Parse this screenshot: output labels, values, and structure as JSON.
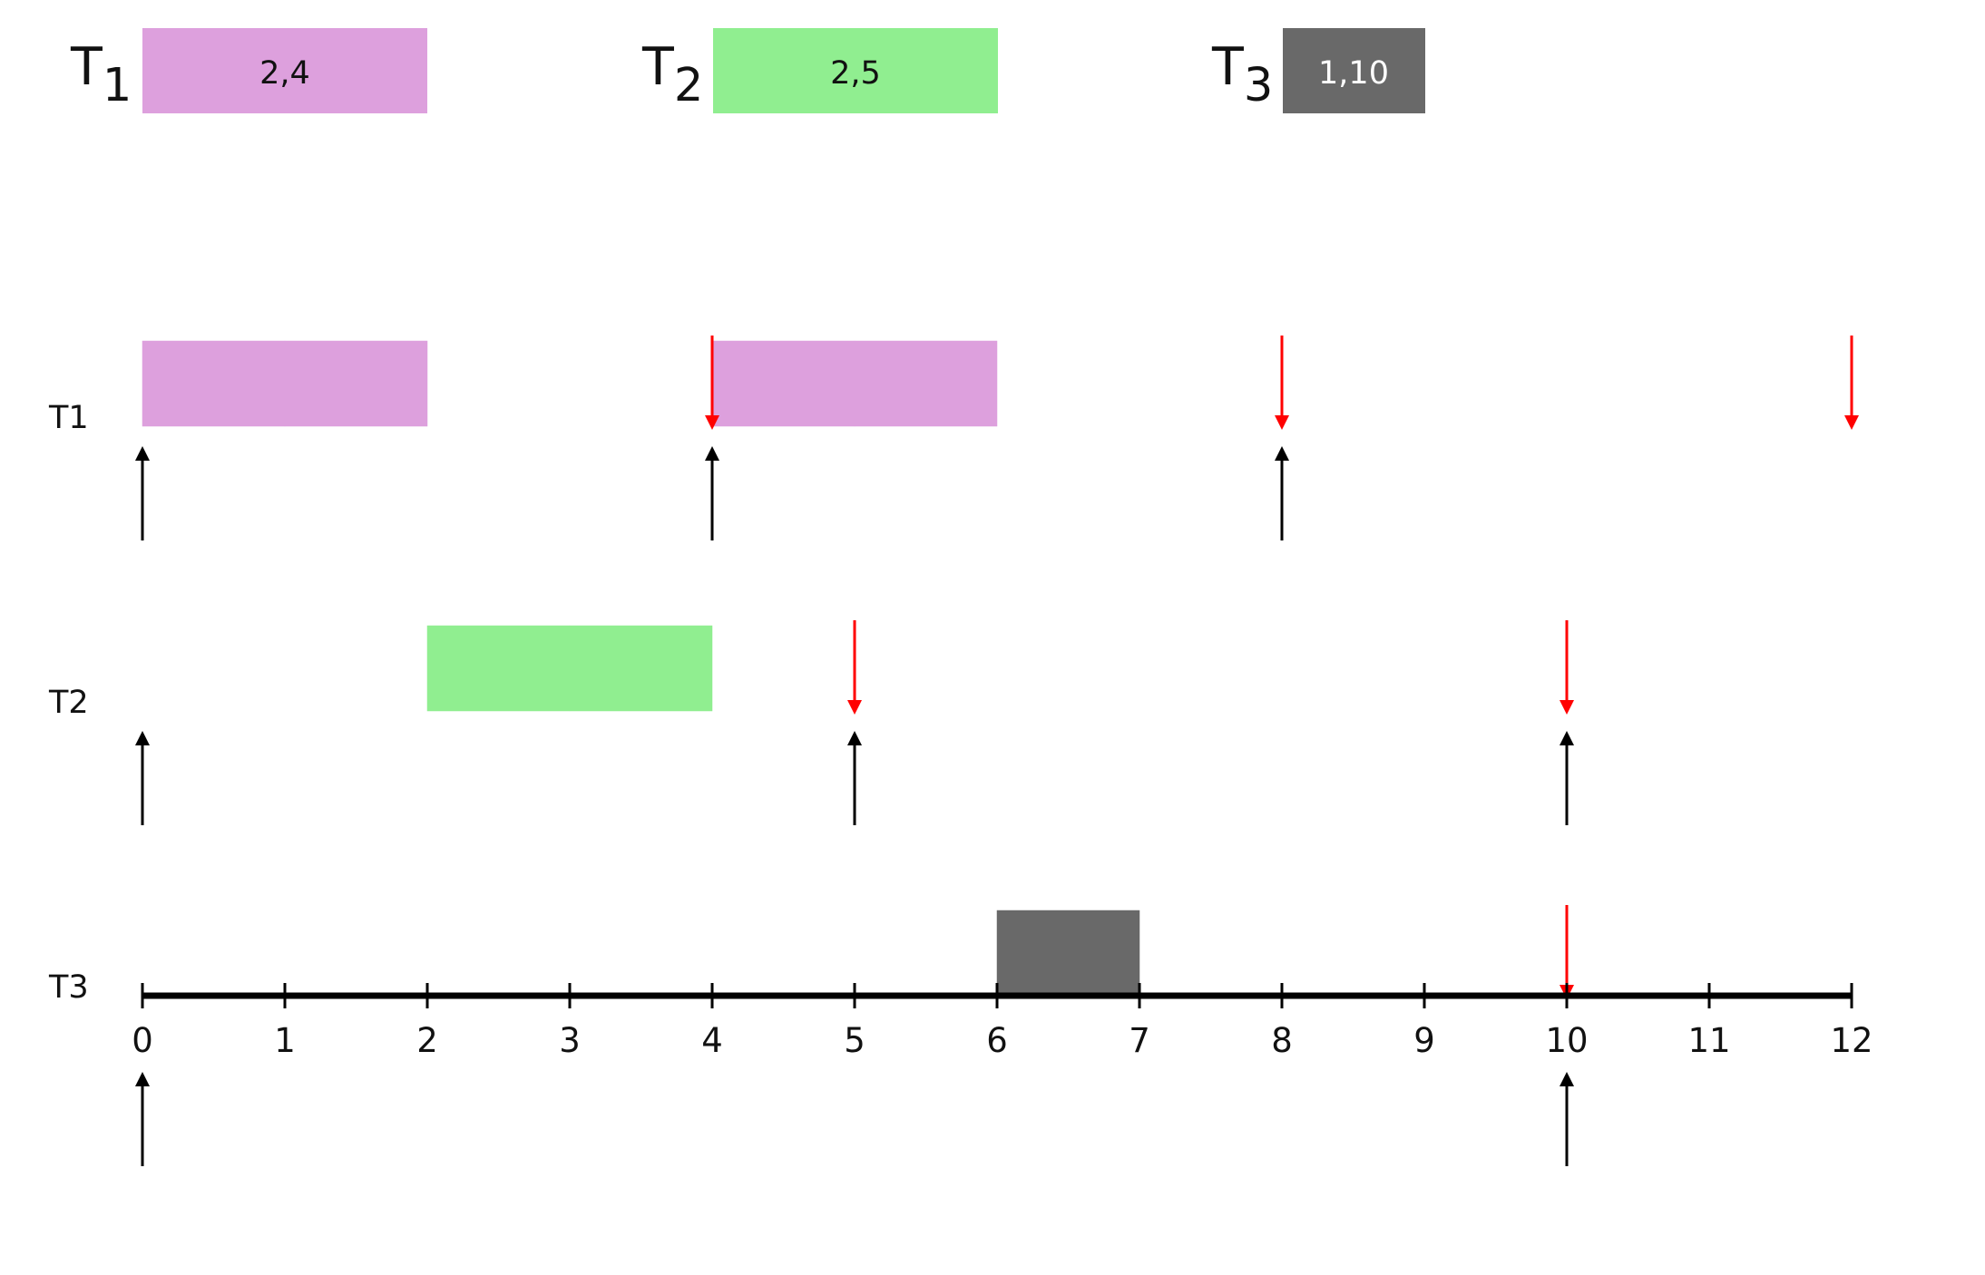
{
  "colors": {
    "T1": "#dda0dd",
    "T2": "#90ee90",
    "T3": "#696969",
    "deadline": "#ff0000",
    "release": "#000000",
    "axis": "#000000"
  },
  "legend": [
    {
      "task": "T1",
      "letter": "T",
      "sub": "1",
      "params": "2,4",
      "param_color": "#111111"
    },
    {
      "task": "T2",
      "letter": "T",
      "sub": "2",
      "params": "2,5",
      "param_color": "#111111"
    },
    {
      "task": "T3",
      "letter": "T",
      "sub": "3",
      "params": "1,10",
      "param_color": "#ffffff"
    }
  ],
  "timeline": {
    "min": 0,
    "max": 12,
    "ticks": [
      "0",
      "1",
      "2",
      "3",
      "4",
      "5",
      "6",
      "7",
      "8",
      "9",
      "10",
      "11",
      "12"
    ]
  },
  "rows": [
    {
      "label": "T1",
      "task": "T1",
      "executions": [
        [
          0,
          1
        ],
        [
          1,
          2
        ],
        [
          4,
          5
        ],
        [
          5,
          6
        ]
      ],
      "releases": [
        0,
        4,
        8
      ],
      "deadlines": [
        4,
        8,
        12
      ]
    },
    {
      "label": "T2",
      "task": "T2",
      "executions": [
        [
          2,
          3
        ],
        [
          3,
          4
        ]
      ],
      "releases": [
        0,
        5,
        10
      ],
      "deadlines": [
        5,
        10
      ]
    },
    {
      "label": "T3",
      "task": "T3",
      "executions": [
        [
          6,
          7
        ]
      ],
      "releases": [
        0,
        10
      ],
      "deadlines": [
        10
      ]
    }
  ]
}
